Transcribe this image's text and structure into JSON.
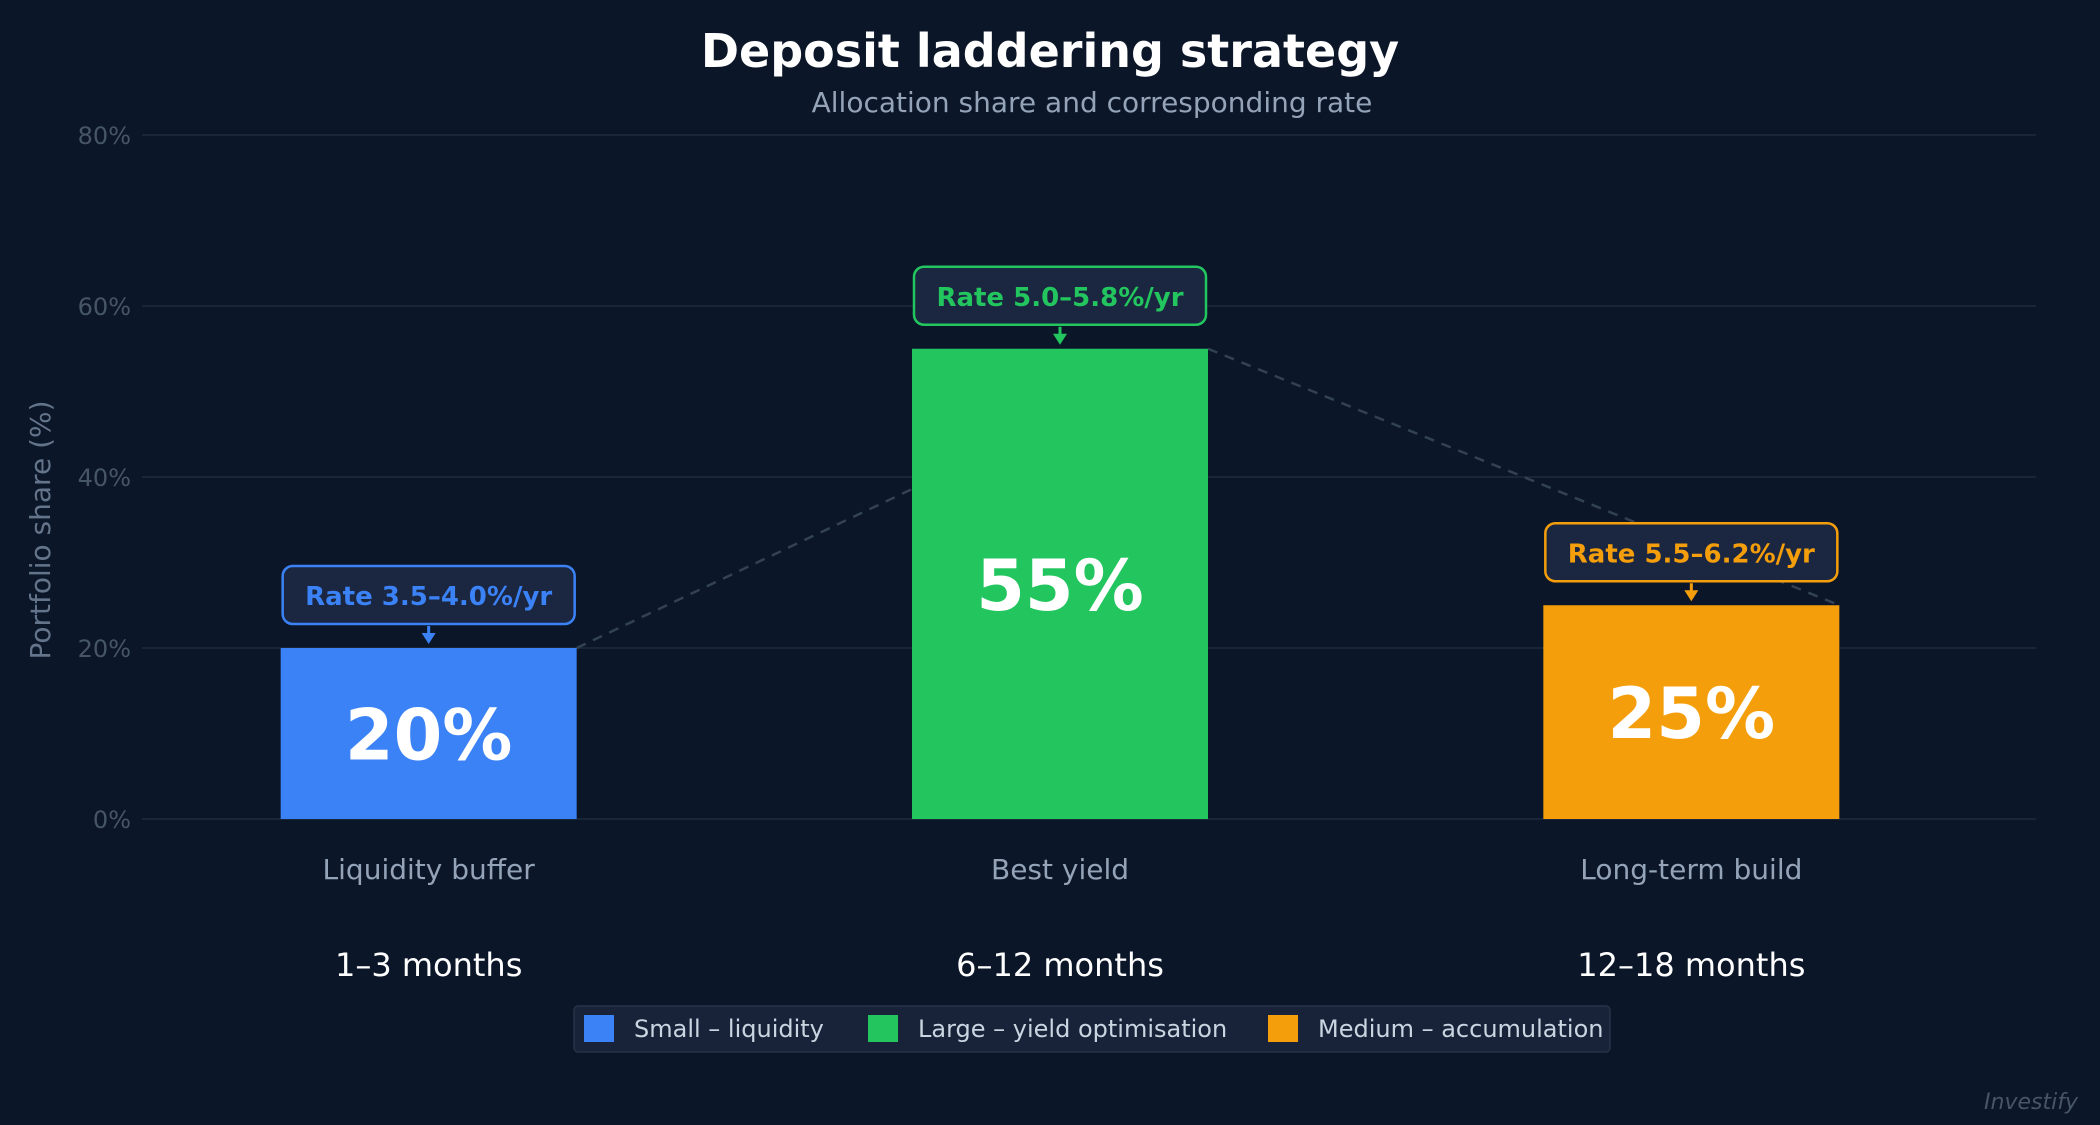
{
  "chart_data": {
    "type": "bar",
    "title": "Deposit laddering strategy",
    "subtitle": "Allocation share and corresponding rate",
    "ylabel": "Portfolio share (%)",
    "ylim": [
      0,
      80
    ],
    "yticks": [
      0,
      20,
      40,
      60,
      80
    ],
    "ytick_labels": [
      "0%",
      "20%",
      "40%",
      "60%",
      "80%"
    ],
    "categories": [
      "Liquidity buffer",
      "Best yield",
      "Long-term build"
    ],
    "terms": [
      "1–3 months",
      "6–12 months",
      "12–18 months"
    ],
    "values": [
      20,
      55,
      25
    ],
    "value_labels": [
      "20%",
      "55%",
      "25%"
    ],
    "rate_labels": [
      "Rate 3.5–4.0%/yr",
      "Rate 5.0–5.8%/yr",
      "Rate 5.5–6.2%/yr"
    ],
    "colors": [
      "#3b82f6",
      "#22c55e",
      "#f59e0b"
    ],
    "legend": [
      "Small – liquidity",
      "Large – yield optimisation",
      "Medium – accumulation"
    ],
    "legend_position": "bottom-center",
    "grid": true,
    "connector": "dashed line linking bar tops"
  },
  "watermark": "Investify"
}
